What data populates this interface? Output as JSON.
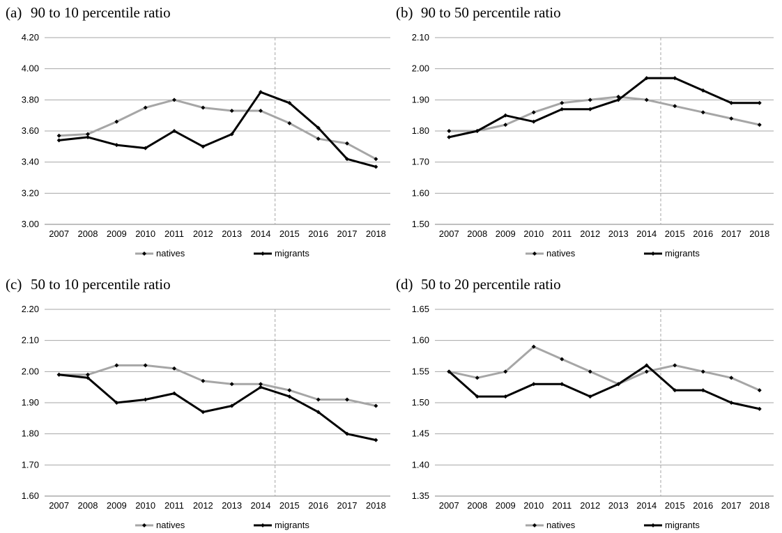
{
  "chart_data": [
    {
      "type": "line",
      "panel_label": "(a)",
      "title": "90 to 10 percentile ratio",
      "categories": [
        "2007",
        "2008",
        "2009",
        "2010",
        "2011",
        "2012",
        "2013",
        "2014",
        "2015",
        "2016",
        "2017",
        "2018"
      ],
      "ylim": [
        3.0,
        4.2
      ],
      "yticks": [
        "3.00",
        "3.20",
        "3.40",
        "3.60",
        "3.80",
        "4.00",
        "4.20"
      ],
      "grid": true,
      "legend_position": "bottom",
      "reference_line_after": "2014",
      "series": [
        {
          "name": "natives",
          "color": "#a6a6a6",
          "values": [
            3.57,
            3.58,
            3.66,
            3.75,
            3.8,
            3.75,
            3.73,
            3.73,
            3.65,
            3.55,
            3.52,
            3.42
          ]
        },
        {
          "name": "migrants",
          "color": "#000000",
          "values": [
            3.54,
            3.56,
            3.51,
            3.49,
            3.6,
            3.5,
            3.58,
            3.85,
            3.78,
            3.62,
            3.42,
            3.37
          ]
        }
      ]
    },
    {
      "type": "line",
      "panel_label": "(b)",
      "title": "90 to 50 percentile ratio",
      "categories": [
        "2007",
        "2008",
        "2009",
        "2010",
        "2011",
        "2012",
        "2013",
        "2014",
        "2015",
        "2016",
        "2017",
        "2018"
      ],
      "ylim": [
        1.5,
        2.1
      ],
      "yticks": [
        "1.50",
        "1.60",
        "1.70",
        "1.80",
        "1.90",
        "2.00",
        "2.10"
      ],
      "grid": true,
      "legend_position": "bottom",
      "reference_line_after": "2014",
      "series": [
        {
          "name": "natives",
          "color": "#a6a6a6",
          "values": [
            1.8,
            1.8,
            1.82,
            1.86,
            1.89,
            1.9,
            1.91,
            1.9,
            1.88,
            1.86,
            1.84,
            1.82
          ]
        },
        {
          "name": "migrants",
          "color": "#000000",
          "values": [
            1.78,
            1.8,
            1.85,
            1.83,
            1.87,
            1.87,
            1.9,
            1.97,
            1.97,
            1.93,
            1.89,
            1.89
          ]
        }
      ]
    },
    {
      "type": "line",
      "panel_label": "(c)",
      "title": "50 to 10 percentile ratio",
      "categories": [
        "2007",
        "2008",
        "2009",
        "2010",
        "2011",
        "2012",
        "2013",
        "2014",
        "2015",
        "2016",
        "2017",
        "2018"
      ],
      "ylim": [
        1.6,
        2.2
      ],
      "yticks": [
        "1.60",
        "1.70",
        "1.80",
        "1.90",
        "2.00",
        "2.10",
        "2.20"
      ],
      "grid": true,
      "legend_position": "bottom",
      "reference_line_after": "2014",
      "series": [
        {
          "name": "natives",
          "color": "#a6a6a6",
          "values": [
            1.99,
            1.99,
            2.02,
            2.02,
            2.01,
            1.97,
            1.96,
            1.96,
            1.94,
            1.91,
            1.91,
            1.89
          ]
        },
        {
          "name": "migrants",
          "color": "#000000",
          "values": [
            1.99,
            1.98,
            1.9,
            1.91,
            1.93,
            1.87,
            1.89,
            1.95,
            1.92,
            1.87,
            1.8,
            1.78
          ]
        }
      ]
    },
    {
      "type": "line",
      "panel_label": "(d)",
      "title": "50 to 20 percentile ratio",
      "categories": [
        "2007",
        "2008",
        "2009",
        "2010",
        "2011",
        "2012",
        "2013",
        "2014",
        "2015",
        "2016",
        "2017",
        "2018"
      ],
      "ylim": [
        1.35,
        1.65
      ],
      "yticks": [
        "1.35",
        "1.40",
        "1.45",
        "1.50",
        "1.55",
        "1.60",
        "1.65"
      ],
      "grid": true,
      "legend_position": "bottom",
      "reference_line_after": "2014",
      "series": [
        {
          "name": "natives",
          "color": "#a6a6a6",
          "values": [
            1.55,
            1.54,
            1.55,
            1.59,
            1.57,
            1.55,
            1.53,
            1.55,
            1.56,
            1.55,
            1.54,
            1.52
          ]
        },
        {
          "name": "migrants",
          "color": "#000000",
          "values": [
            1.55,
            1.51,
            1.51,
            1.53,
            1.53,
            1.51,
            1.53,
            1.56,
            1.52,
            1.52,
            1.5,
            1.49
          ]
        }
      ]
    }
  ]
}
